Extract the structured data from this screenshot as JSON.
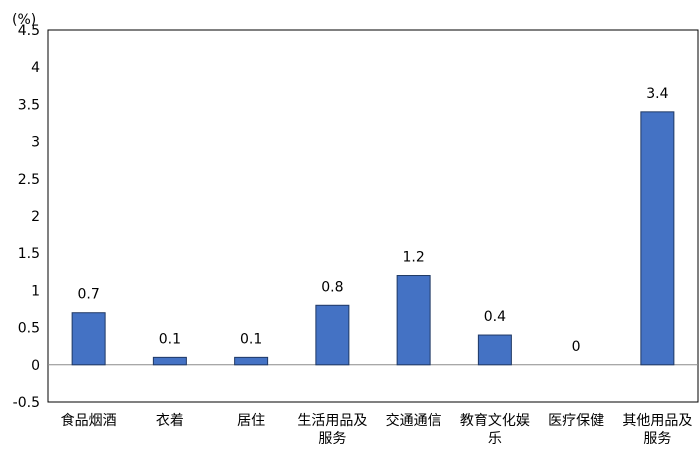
{
  "chart_data": {
    "type": "bar",
    "unit_label": "(%)",
    "categories": [
      [
        "食品烟酒"
      ],
      [
        "衣着"
      ],
      [
        "居住"
      ],
      [
        "生活用品及",
        "服务"
      ],
      [
        "交通通信"
      ],
      [
        "教育文化娱",
        "乐"
      ],
      [
        "医疗保健"
      ],
      [
        "其他用品及",
        "服务"
      ]
    ],
    "values": [
      0.7,
      0.1,
      0.1,
      0.8,
      1.2,
      0.4,
      0,
      3.4
    ],
    "value_labels": [
      "0.7",
      "0.1",
      "0.1",
      "0.8",
      "1.2",
      "0.4",
      "0",
      "3.4"
    ],
    "yticks": [
      "-0.5",
      "0",
      "0.5",
      "1",
      "1.5",
      "2",
      "2.5",
      "3",
      "3.5",
      "4",
      "4.5"
    ],
    "ylim": [
      -0.5,
      4.5
    ],
    "grid": false,
    "legend": "none",
    "colors": {
      "bar": "#4472C4",
      "bar_edge": "#1F3864",
      "axis": "#000000",
      "zero_line": "#8C8C8C"
    }
  }
}
